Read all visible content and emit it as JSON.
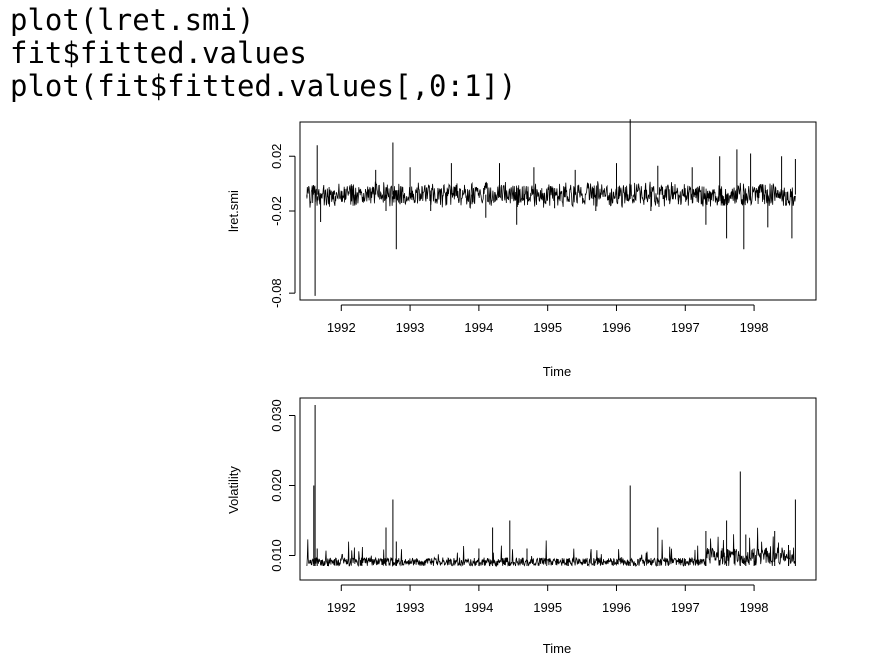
{
  "code_lines": [
    "plot(lret.smi)",
    "fit$fitted.values",
    "plot(fit$fitted.values[,0:1])"
  ],
  "chart_data": [
    {
      "type": "line",
      "xlabel": "Time",
      "ylabel": "lret.smi",
      "xlim": [
        1991.4,
        1998.9
      ],
      "ylim": [
        -0.085,
        0.045
      ],
      "x_ticks": [
        1992,
        1993,
        1994,
        1995,
        1996,
        1997,
        1998
      ],
      "x_tick_labels": [
        "1992",
        "1993",
        "1994",
        "1995",
        "1996",
        "1997",
        "1998"
      ],
      "y_ticks": [
        0.02,
        -0.02,
        -0.08
      ],
      "y_tick_labels": [
        "0.02",
        "-0.02",
        "-0.08"
      ],
      "color": "#000000",
      "series": [
        {
          "x": [
            1991.5,
            1991.6,
            1991.62,
            1991.65,
            1991.7,
            1991.9,
            1992.2,
            1992.5,
            1992.65,
            1992.75,
            1992.8,
            1993.0,
            1993.3,
            1993.6,
            1993.9,
            1994.1,
            1994.3,
            1994.55,
            1994.8,
            1995.1,
            1995.4,
            1995.7,
            1996.0,
            1996.2,
            1996.25,
            1996.5,
            1996.6,
            1996.9,
            1997.1,
            1997.3,
            1997.5,
            1997.6,
            1997.75,
            1997.85,
            1997.95,
            1998.2,
            1998.4,
            1998.55,
            1998.6
          ],
          "y": [
            -0.01,
            -0.002,
            -0.082,
            0.028,
            -0.028,
            -0.005,
            -0.015,
            0.01,
            -0.02,
            0.03,
            -0.048,
            0.012,
            -0.02,
            0.015,
            -0.015,
            -0.025,
            0.015,
            -0.03,
            0.012,
            -0.018,
            0.01,
            -0.02,
            0.015,
            0.047,
            -0.01,
            -0.02,
            0.013,
            -0.015,
            0.012,
            -0.03,
            0.02,
            -0.04,
            0.025,
            -0.048,
            0.022,
            -0.032,
            0.02,
            -0.04,
            0.018
          ]
        }
      ]
    },
    {
      "type": "line",
      "xlabel": "Time",
      "ylabel": "Volatility",
      "xlim": [
        1991.4,
        1998.9
      ],
      "ylim": [
        0.0065,
        0.0325
      ],
      "x_ticks": [
        1992,
        1993,
        1994,
        1995,
        1996,
        1997,
        1998
      ],
      "x_tick_labels": [
        "1992",
        "1993",
        "1994",
        "1995",
        "1996",
        "1997",
        "1998"
      ],
      "y_ticks": [
        0.01,
        0.02,
        0.03
      ],
      "y_tick_labels": [
        "0.010",
        "0.020",
        "0.030"
      ],
      "color": "#000000",
      "series": [
        {
          "x": [
            1991.5,
            1991.6,
            1991.62,
            1991.65,
            1991.8,
            1992.3,
            1992.65,
            1992.75,
            1992.8,
            1993.2,
            1993.8,
            1994.0,
            1994.2,
            1994.45,
            1994.7,
            1995.3,
            1995.8,
            1996.2,
            1996.25,
            1996.6,
            1997.0,
            1997.3,
            1997.6,
            1997.8,
            1997.88,
            1998.0,
            1998.3,
            1998.5,
            1998.6
          ],
          "y": [
            0.0085,
            0.02,
            0.0315,
            0.011,
            0.009,
            0.0095,
            0.014,
            0.018,
            0.012,
            0.009,
            0.0085,
            0.011,
            0.014,
            0.015,
            0.011,
            0.009,
            0.0085,
            0.02,
            0.009,
            0.014,
            0.0095,
            0.0135,
            0.015,
            0.022,
            0.013,
            0.011,
            0.0135,
            0.0115,
            0.018
          ]
        }
      ]
    }
  ]
}
